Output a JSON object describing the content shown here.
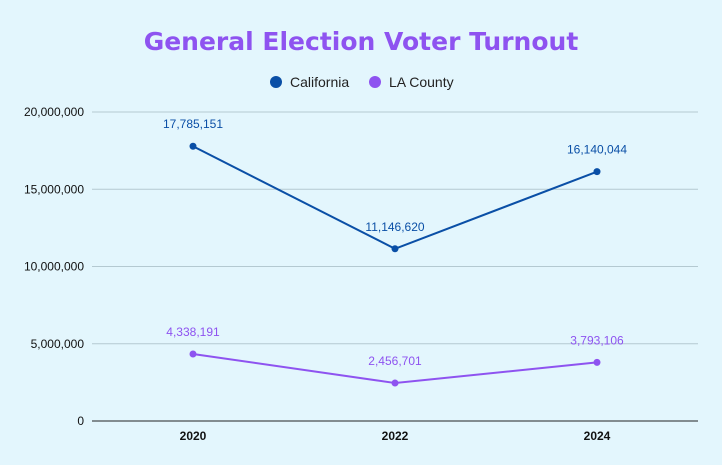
{
  "chart_data": {
    "type": "line",
    "title": "General Election Voter Turnout",
    "categories": [
      "2020",
      "2022",
      "2024"
    ],
    "series": [
      {
        "name": "California",
        "values": [
          17785151,
          11146620,
          16140044
        ],
        "labels": [
          "17,785,151",
          "11,146,620",
          "16,140,044"
        ]
      },
      {
        "name": "LA County",
        "values": [
          4338191,
          2456701,
          3793106
        ],
        "labels": [
          "4,338,191",
          "2,456,701",
          "3,793,106"
        ]
      }
    ],
    "ylim": [
      0,
      20000000
    ],
    "yticks": [
      {
        "value": 0,
        "label": "0"
      },
      {
        "value": 5000000,
        "label": "5,000,000"
      },
      {
        "value": 10000000,
        "label": "10,000,000"
      },
      {
        "value": 15000000,
        "label": "15,000,000"
      },
      {
        "value": 20000000,
        "label": "20,000,000"
      }
    ],
    "grid": true,
    "legend_position": "top-center",
    "xlabel": "",
    "ylabel": ""
  },
  "colors": {
    "background": "#e3f6fd",
    "title": "#8e53f0",
    "series": [
      "#0a4fa6",
      "#8e53f0"
    ],
    "grid": "#b4c9d1"
  }
}
